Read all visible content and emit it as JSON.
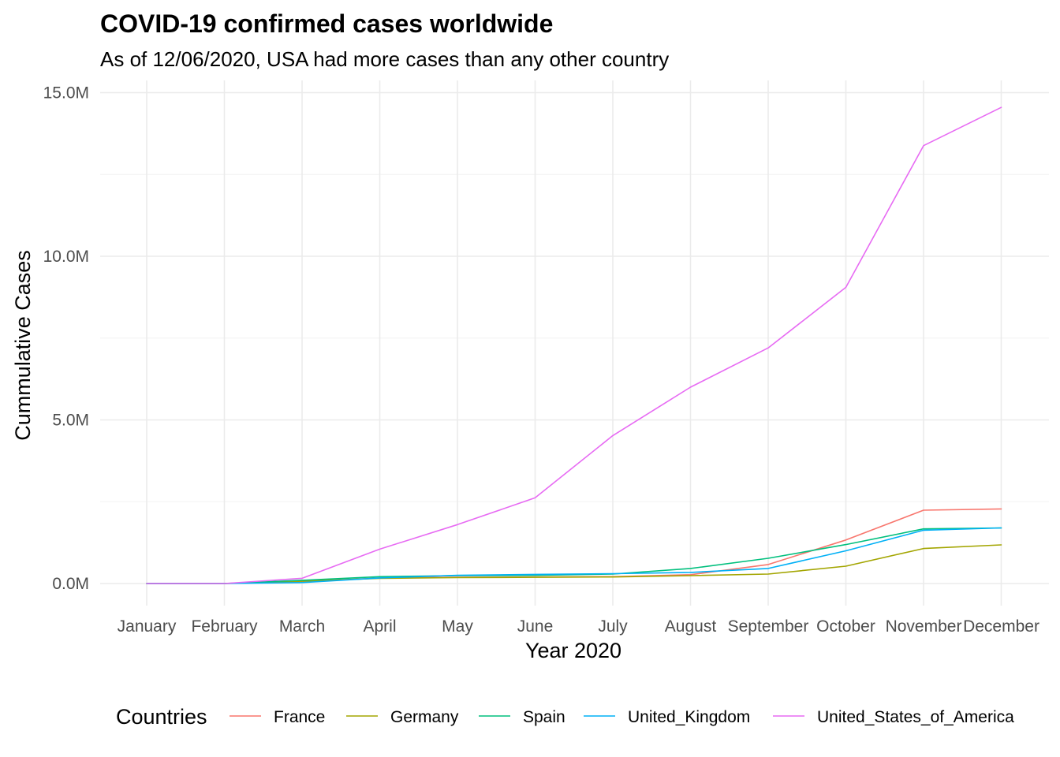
{
  "chart_data": {
    "type": "line",
    "title": "COVID-19 confirmed cases worldwide",
    "subtitle": "As of 12/06/2020, USA had more cases than any other country",
    "xlabel": "Year 2020",
    "ylabel": "Cummulative Cases",
    "categories": [
      "January",
      "February",
      "March",
      "April",
      "May",
      "June",
      "July",
      "August",
      "September",
      "October",
      "November",
      "December"
    ],
    "y_ticks": [
      0,
      5,
      10,
      15
    ],
    "y_tick_labels": [
      "0.0M",
      "5.0M",
      "10.0M",
      "15.0M"
    ],
    "y_unit": "millions",
    "ylim": [
      -0.45,
      15.2
    ],
    "grid": true,
    "legend": {
      "title": "Countries",
      "position": "bottom"
    },
    "series": [
      {
        "name": "France",
        "color": "#F8766D",
        "values": [
          0.0,
          0.0,
          0.05,
          0.17,
          0.19,
          0.2,
          0.21,
          0.27,
          0.58,
          1.33,
          2.24,
          2.28
        ]
      },
      {
        "name": "Germany",
        "color": "#A3A500",
        "values": [
          0.0,
          0.0,
          0.07,
          0.16,
          0.18,
          0.19,
          0.2,
          0.24,
          0.29,
          0.53,
          1.07,
          1.18
        ]
      },
      {
        "name": "Spain",
        "color": "#00BF7D",
        "values": [
          0.0,
          0.0,
          0.1,
          0.21,
          0.24,
          0.25,
          0.29,
          0.46,
          0.77,
          1.19,
          1.67,
          1.7
        ]
      },
      {
        "name": "United_Kingdom",
        "color": "#00B0F6",
        "values": [
          0.0,
          0.0,
          0.03,
          0.17,
          0.25,
          0.28,
          0.3,
          0.34,
          0.46,
          1.0,
          1.63,
          1.7
        ]
      },
      {
        "name": "United_States_of_America",
        "color": "#E76BF3",
        "values": [
          0.0,
          0.0,
          0.16,
          1.05,
          1.8,
          2.62,
          4.52,
          6.0,
          7.2,
          9.05,
          13.38,
          14.55
        ]
      }
    ]
  }
}
